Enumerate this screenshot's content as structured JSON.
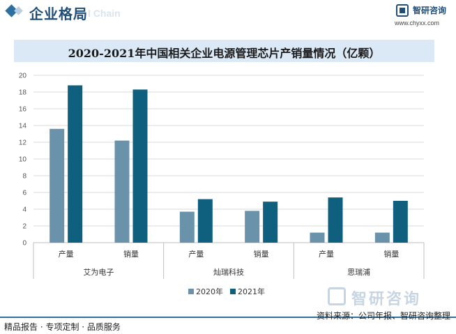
{
  "header": {
    "section_title": "企业格局",
    "ghost_text": "l Chain",
    "brand_name": "智研咨询",
    "brand_url": "www.chyxx.com"
  },
  "chart_data": {
    "type": "bar",
    "title": "2020-2021年中国相关企业电源管理芯片产销量情况（亿颗）",
    "xlabel": "",
    "ylabel": "",
    "ylim": [
      0,
      20
    ],
    "yticks": [
      0,
      2,
      4,
      6,
      8,
      10,
      12,
      14,
      16,
      18,
      20
    ],
    "grid": true,
    "legend_position": "bottom",
    "groups": [
      "艾为电子",
      "灿瑞科技",
      "思瑞浦"
    ],
    "categories": [
      "产量",
      "销量",
      "产量",
      "销量",
      "产量",
      "销量"
    ],
    "series": [
      {
        "name": "2020年",
        "color": "#6a93ab",
        "values": [
          13.6,
          12.2,
          3.7,
          3.8,
          1.2,
          1.2
        ]
      },
      {
        "name": "2021年",
        "color": "#0f5f7f",
        "values": [
          18.8,
          18.3,
          5.2,
          4.9,
          5.4,
          5.0
        ]
      }
    ]
  },
  "footer": {
    "left_text": "精品报告 · 专项定制 · 品质服务",
    "source_text": "资料来源：公司年报、智研咨询整理",
    "watermark_brand": "智研咨询"
  }
}
